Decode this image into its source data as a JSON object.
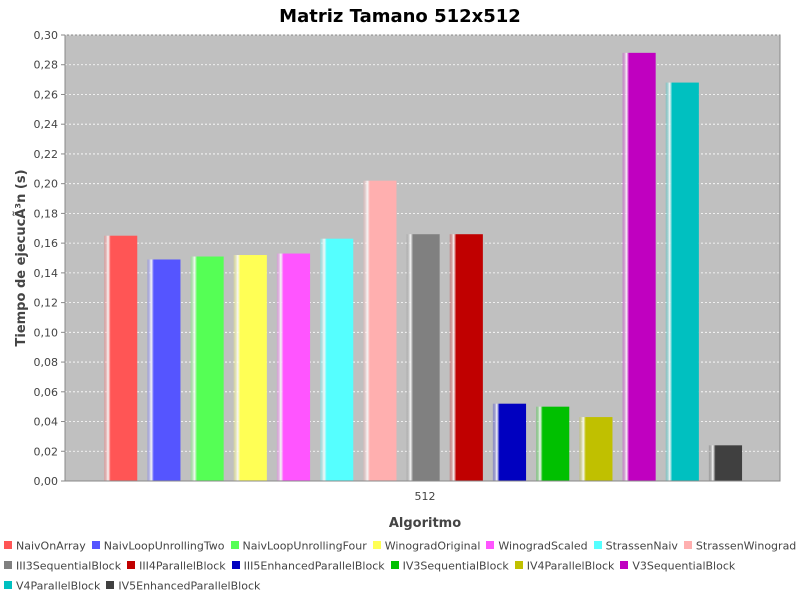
{
  "chart_data": {
    "type": "bar",
    "title": "Matriz Tamano 512x512",
    "xlabel": "Algoritmo",
    "ylabel": "Tiempo de ejecucÃ³n (s)",
    "categories": [
      "512"
    ],
    "ylim": [
      0,
      0.3
    ],
    "yticks": [
      "0,00",
      "0,02",
      "0,04",
      "0,06",
      "0,08",
      "0,10",
      "0,12",
      "0,14",
      "0,16",
      "0,18",
      "0,20",
      "0,22",
      "0,24",
      "0,26",
      "0,28",
      "0,30"
    ],
    "grid": true,
    "legend_position": "bottom",
    "plot_background": "#c0c0c0",
    "series": [
      {
        "name": "NaivOnArray",
        "values": [
          0.165
        ],
        "color": "#ff5555"
      },
      {
        "name": "NaivLoopUnrollingTwo",
        "values": [
          0.149
        ],
        "color": "#5555ff"
      },
      {
        "name": "NaivLoopUnrollingFour",
        "values": [
          0.151
        ],
        "color": "#55ff55"
      },
      {
        "name": "WinogradOriginal",
        "values": [
          0.152
        ],
        "color": "#ffff55"
      },
      {
        "name": "WinogradScaled",
        "values": [
          0.153
        ],
        "color": "#ff55ff"
      },
      {
        "name": "StrassenNaiv",
        "values": [
          0.163
        ],
        "color": "#55ffff"
      },
      {
        "name": "StrassenWinograd",
        "values": [
          0.202
        ],
        "color": "#ffafaf"
      },
      {
        "name": "III3SequentialBlock",
        "values": [
          0.166
        ],
        "color": "#808080"
      },
      {
        "name": "III4ParallelBlock",
        "values": [
          0.166
        ],
        "color": "#c00000"
      },
      {
        "name": "III5EnhancedParallelBlock",
        "values": [
          0.052
        ],
        "color": "#0000c0"
      },
      {
        "name": "IV3SequentialBlock",
        "values": [
          0.05
        ],
        "color": "#00c000"
      },
      {
        "name": "IV4ParallelBlock",
        "values": [
          0.043
        ],
        "color": "#c0c000"
      },
      {
        "name": "V3SequentialBlock",
        "values": [
          0.288
        ],
        "color": "#c000c0"
      },
      {
        "name": "V4ParallelBlock",
        "values": [
          0.268
        ],
        "color": "#00c0c0"
      },
      {
        "name": "IV5EnhancedParallelBlock",
        "values": [
          0.024
        ],
        "color": "#404040"
      }
    ]
  }
}
